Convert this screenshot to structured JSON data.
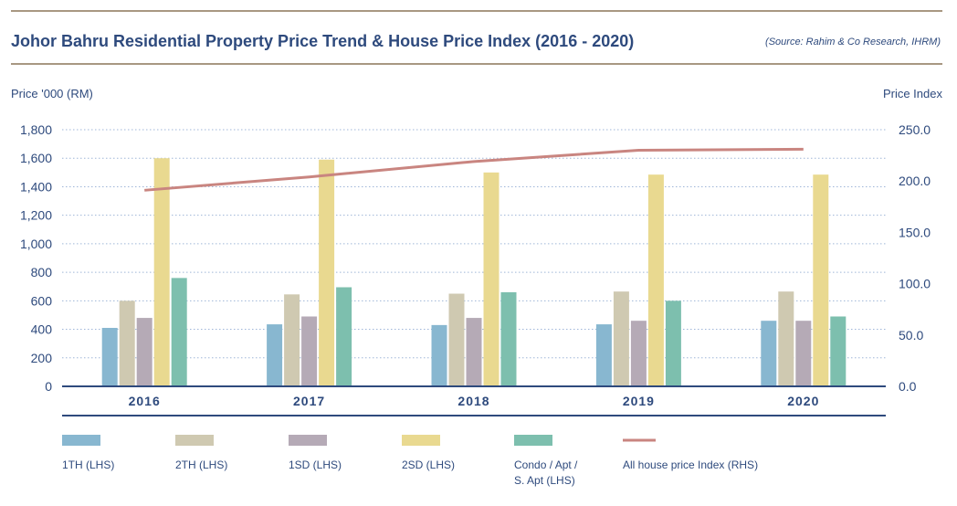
{
  "title": "Johor Bahru Residential Property Price Trend & House Price Index (2016 - 2020)",
  "source": "(Source: Rahim & Co Research, IHRM)",
  "colors": {
    "rule": "#a89882",
    "text": "#2e4a7d",
    "grid": "#9fb6d8",
    "axis": "#2e4a7d",
    "line": "#c98580"
  },
  "chart_data": {
    "type": "bar",
    "title": "Johor Bahru Residential Property Price Trend & House Price Index (2016 - 2020)",
    "ylabel_left": "Price '000 (RM)",
    "ylabel_right": "Price Index",
    "categories": [
      "2016",
      "2017",
      "2018",
      "2019",
      "2020"
    ],
    "ylim_left": [
      0,
      1800
    ],
    "yticks_left": [
      "0",
      "200",
      "400",
      "600",
      "800",
      "1,000",
      "1,200",
      "1,400",
      "1,600",
      "1,800"
    ],
    "ylim_right": [
      0,
      250
    ],
    "yticks_right": [
      "0.0",
      "50.0",
      "100.0",
      "150.0",
      "200.0",
      "250.0"
    ],
    "grid": true,
    "legend_position": "bottom",
    "series": [
      {
        "name": "1TH (LHS)",
        "type": "bar",
        "axis": "left",
        "color": "#88b7d0",
        "values": [
          410,
          435,
          430,
          435,
          460
        ]
      },
      {
        "name": "2TH (LHS)",
        "type": "bar",
        "axis": "left",
        "color": "#cfc9b1",
        "values": [
          600,
          645,
          650,
          665,
          665
        ]
      },
      {
        "name": "1SD (LHS)",
        "type": "bar",
        "axis": "left",
        "color": "#b5aab6",
        "values": [
          480,
          490,
          480,
          460,
          460
        ]
      },
      {
        "name": "2SD (LHS)",
        "type": "bar",
        "axis": "left",
        "color": "#e9d990",
        "values": [
          1600,
          1590,
          1500,
          1485,
          1485
        ]
      },
      {
        "name": "Condo / Apt / S. Apt (LHS)",
        "label_lines": [
          "Condo / Apt /",
          "S. Apt (LHS)"
        ],
        "type": "bar",
        "axis": "left",
        "color": "#7dbfae",
        "values": [
          760,
          695,
          660,
          600,
          490
        ]
      },
      {
        "name": "All house price Index (RHS)",
        "type": "line",
        "axis": "right",
        "color": "#c98580",
        "values": [
          191,
          204,
          219,
          230,
          231
        ]
      }
    ]
  }
}
